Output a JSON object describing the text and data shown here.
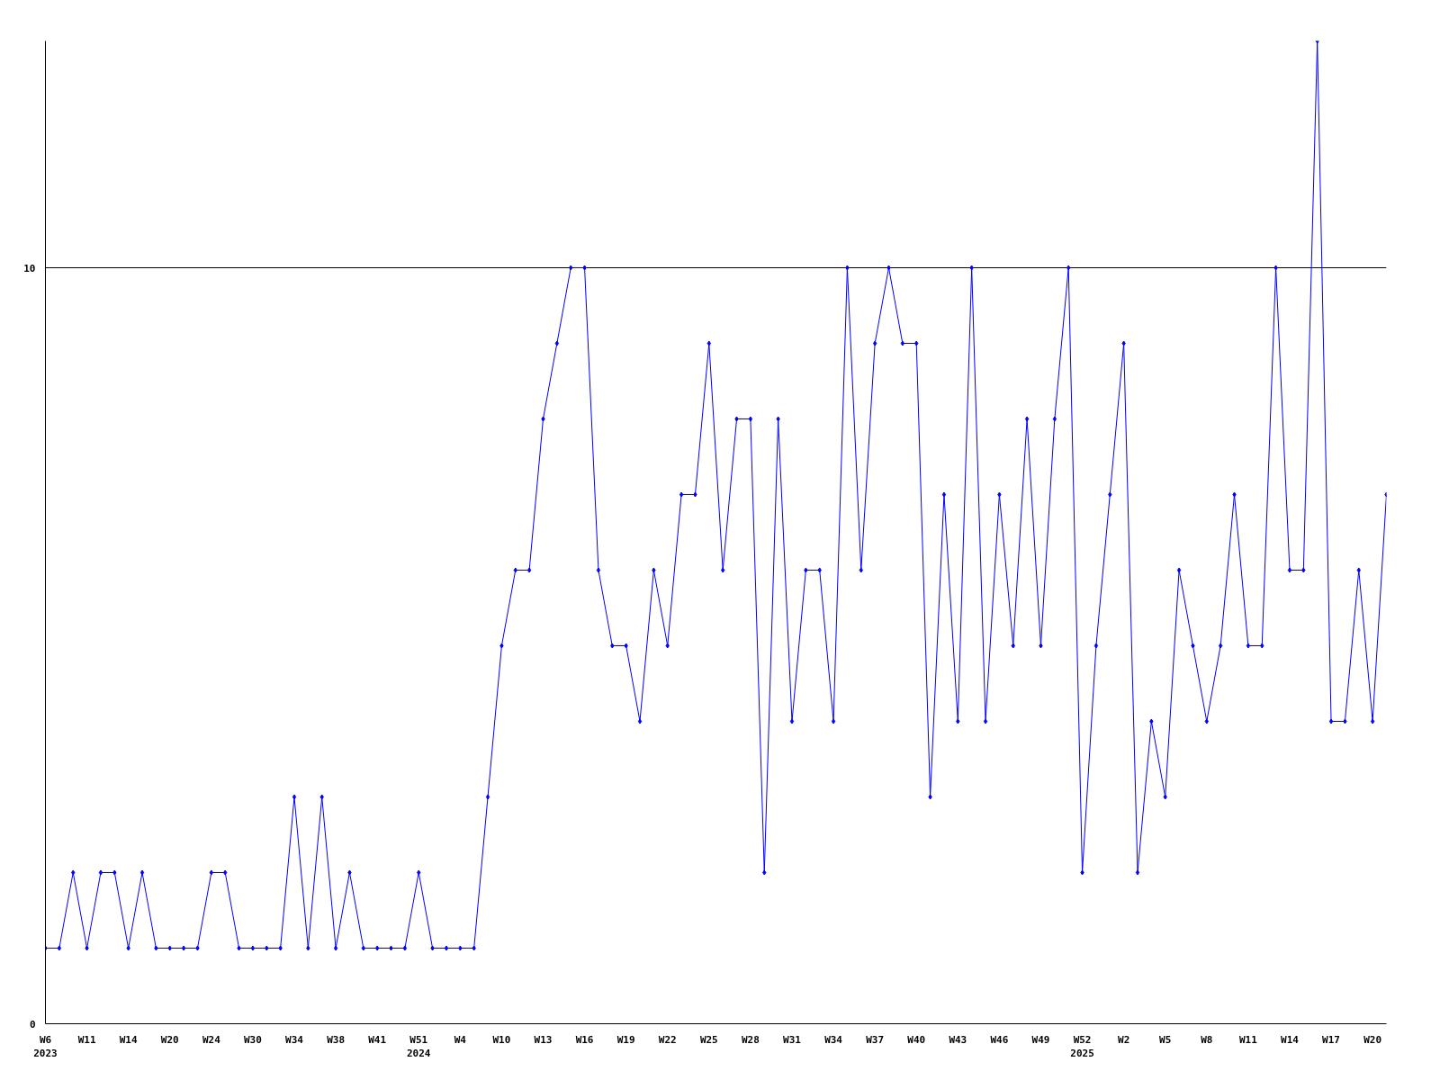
{
  "chart_data": {
    "type": "line",
    "categories": [
      "W6\n2023",
      null,
      null,
      "W11",
      null,
      null,
      "W14",
      null,
      null,
      "W20",
      null,
      null,
      "W24",
      null,
      null,
      "W30",
      null,
      null,
      "W34",
      null,
      null,
      "W38",
      null,
      null,
      "W41",
      null,
      null,
      "W51\n2024",
      null,
      null,
      "W4",
      null,
      null,
      "W10",
      null,
      null,
      "W13",
      null,
      null,
      "W16",
      null,
      null,
      "W19",
      null,
      null,
      "W22",
      null,
      null,
      "W25",
      null,
      null,
      "W28",
      null,
      null,
      "W31",
      null,
      null,
      "W34",
      null,
      null,
      "W37",
      null,
      null,
      "W40",
      null,
      null,
      "W43",
      null,
      null,
      "W46",
      null,
      null,
      "W49",
      null,
      null,
      "W52\n2025",
      null,
      null,
      "W2",
      null,
      null,
      "W5",
      null,
      null,
      "W8",
      null,
      null,
      "W11",
      null,
      null,
      "W14",
      null,
      null,
      "W17",
      null,
      null,
      "W20",
      null
    ],
    "series": [
      {
        "color": "#0000ff",
        "values": [
          1,
          1,
          2,
          1,
          2,
          2,
          1,
          2,
          1,
          1,
          1,
          1,
          2,
          2,
          1,
          1,
          1,
          1,
          3,
          1,
          3,
          1,
          2,
          1,
          1,
          1,
          1,
          2,
          1,
          1,
          1,
          1,
          3,
          5,
          6,
          6,
          8,
          9,
          10,
          10,
          6,
          5,
          5,
          4,
          6,
          5,
          7,
          7,
          9,
          6,
          8,
          8,
          2,
          8,
          4,
          6,
          6,
          4,
          10,
          6,
          9,
          10,
          9,
          9,
          3,
          7,
          4,
          10,
          4,
          7,
          5,
          8,
          5,
          8,
          10,
          2,
          5,
          7,
          9,
          2,
          4,
          3,
          6,
          5,
          4,
          5,
          7,
          5,
          5,
          10,
          6,
          6,
          13,
          4,
          4,
          6,
          4,
          7
        ]
      }
    ],
    "ylim": [
      0,
      13
    ],
    "yticks": [
      0,
      10
    ],
    "grid": "y",
    "marker": "diamond",
    "line_style": "solid"
  }
}
